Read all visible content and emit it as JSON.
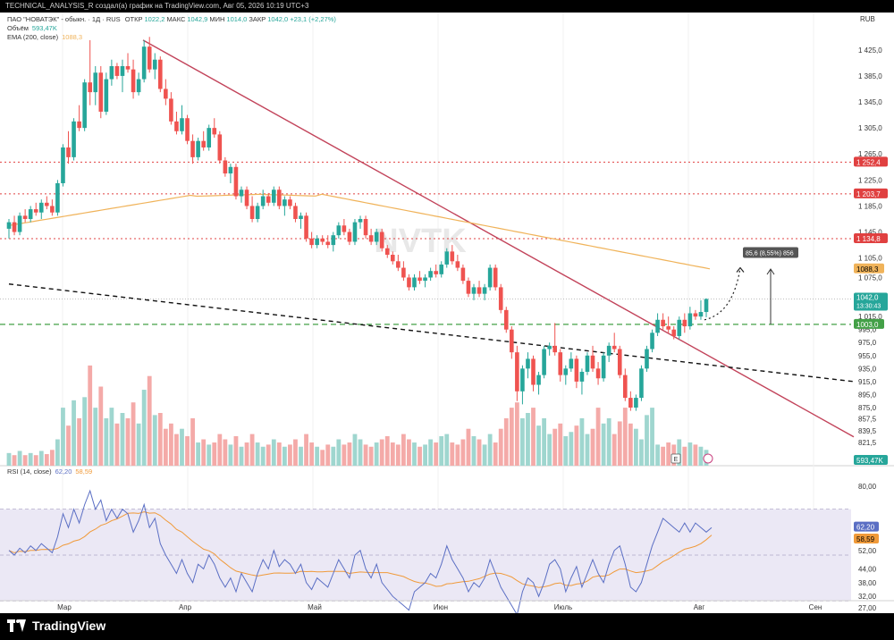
{
  "header": {
    "caption": "TECHNICAL_ANALYSIS_R создал(а) график на TradingView.com, Авг 05, 2026 10:19 UTC+3"
  },
  "footer": {
    "brand": "TradingView"
  },
  "legend": {
    "symbol": "ПАО \"НОВАТЭК\" - обыкн. · 1Д · RUS",
    "open_label": "ОТКР",
    "open": "1022,2",
    "high_label": "МАКС",
    "high": "1042,9",
    "low_label": "МИН",
    "low": "1014,0",
    "close_label": "ЗАКР",
    "close": "1042,0",
    "change": "+23,1 (+2,27%)",
    "volume_label": "Объём",
    "volume": "593,47K",
    "ema_label": "EMA (200, close)",
    "ema": "1088,3",
    "rsi_label": "RSI (14, close)",
    "rsi": "62,20",
    "rsi_ma": "58,59"
  },
  "watermark": "NVTK",
  "currency": "RUB",
  "colors": {
    "up": "#26a69a",
    "down": "#ef5350",
    "ema": "#f0b35a",
    "trend": "#c2435a",
    "rsi": "#5b6fc4",
    "rsi_ma": "#f09a3a",
    "support": "#43a047"
  },
  "price_axis": [
    "1 425,0",
    "1 385,0",
    "1 345,0",
    "1 305,0",
    "1 265,0",
    "1 225,0",
    "1 185,0",
    "1 145,0",
    "1 105,0",
    "1 075,0",
    "1 015,0",
    "995,0",
    "975,0",
    "955,0",
    "935,0",
    "915,0",
    "895,0",
    "875,0",
    "857,5",
    "839,5",
    "821,5"
  ],
  "price_tags": {
    "r1": "1 252,4",
    "r2": "1 203,7",
    "r3": "1 134,8",
    "ema": "1088,3",
    "last": "1042,0",
    "countdown": "13:30:43",
    "support": "1003,0",
    "volume": "593,47K"
  },
  "rsi_axis": [
    "80,00",
    "62,20",
    "58,59",
    "52,00",
    "44,00",
    "38,00",
    "32,00",
    "27,00"
  ],
  "time_axis": [
    "Мар",
    "Апр",
    "Май",
    "Июн",
    "Июль",
    "Авг",
    "Сен"
  ],
  "projection_label": "85,6 (8,55%) 856",
  "earnings_icon": "E",
  "chart_data": {
    "type": "candlestick",
    "price_range": [
      820,
      1455
    ],
    "ohlc": [
      [
        1150,
        1165,
        1135,
        1160
      ],
      [
        1160,
        1170,
        1140,
        1145
      ],
      [
        1145,
        1175,
        1140,
        1170
      ],
      [
        1170,
        1180,
        1160,
        1165
      ],
      [
        1165,
        1185,
        1160,
        1180
      ],
      [
        1180,
        1190,
        1170,
        1175
      ],
      [
        1175,
        1195,
        1165,
        1190
      ],
      [
        1190,
        1200,
        1180,
        1185
      ],
      [
        1185,
        1195,
        1170,
        1175
      ],
      [
        1175,
        1225,
        1170,
        1220
      ],
      [
        1220,
        1280,
        1215,
        1275
      ],
      [
        1275,
        1300,
        1250,
        1260
      ],
      [
        1260,
        1320,
        1255,
        1315
      ],
      [
        1315,
        1340,
        1300,
        1305
      ],
      [
        1305,
        1380,
        1300,
        1375
      ],
      [
        1375,
        1440,
        1340,
        1360
      ],
      [
        1360,
        1400,
        1340,
        1390
      ],
      [
        1390,
        1400,
        1320,
        1330
      ],
      [
        1330,
        1390,
        1325,
        1380
      ],
      [
        1380,
        1410,
        1370,
        1400
      ],
      [
        1400,
        1405,
        1380,
        1385
      ],
      [
        1385,
        1410,
        1360,
        1400
      ],
      [
        1400,
        1420,
        1390,
        1395
      ],
      [
        1395,
        1410,
        1350,
        1360
      ],
      [
        1360,
        1390,
        1355,
        1380
      ],
      [
        1380,
        1440,
        1375,
        1430
      ],
      [
        1430,
        1445,
        1390,
        1395
      ],
      [
        1395,
        1420,
        1380,
        1410
      ],
      [
        1410,
        1415,
        1360,
        1365
      ],
      [
        1365,
        1380,
        1340,
        1350
      ],
      [
        1350,
        1360,
        1310,
        1315
      ],
      [
        1315,
        1330,
        1295,
        1300
      ],
      [
        1300,
        1340,
        1295,
        1320
      ],
      [
        1320,
        1325,
        1280,
        1285
      ],
      [
        1285,
        1295,
        1250,
        1260
      ],
      [
        1260,
        1290,
        1255,
        1285
      ],
      [
        1285,
        1300,
        1270,
        1275
      ],
      [
        1275,
        1310,
        1270,
        1305
      ],
      [
        1305,
        1320,
        1290,
        1295
      ],
      [
        1295,
        1300,
        1250,
        1255
      ],
      [
        1255,
        1260,
        1230,
        1235
      ],
      [
        1235,
        1250,
        1220,
        1245
      ],
      [
        1245,
        1250,
        1195,
        1200
      ],
      [
        1200,
        1215,
        1190,
        1210
      ],
      [
        1210,
        1215,
        1180,
        1185
      ],
      [
        1185,
        1200,
        1160,
        1165
      ],
      [
        1165,
        1190,
        1160,
        1185
      ],
      [
        1185,
        1210,
        1180,
        1200
      ],
      [
        1200,
        1205,
        1185,
        1190
      ],
      [
        1190,
        1215,
        1185,
        1210
      ],
      [
        1210,
        1215,
        1180,
        1185
      ],
      [
        1185,
        1200,
        1170,
        1195
      ],
      [
        1195,
        1200,
        1180,
        1185
      ],
      [
        1185,
        1190,
        1160,
        1165
      ],
      [
        1165,
        1175,
        1150,
        1170
      ],
      [
        1170,
        1175,
        1130,
        1135
      ],
      [
        1135,
        1145,
        1120,
        1125
      ],
      [
        1125,
        1140,
        1120,
        1135
      ],
      [
        1135,
        1140,
        1125,
        1130
      ],
      [
        1130,
        1140,
        1120,
        1125
      ],
      [
        1125,
        1145,
        1115,
        1140
      ],
      [
        1140,
        1160,
        1135,
        1155
      ],
      [
        1155,
        1165,
        1140,
        1145
      ],
      [
        1145,
        1150,
        1125,
        1130
      ],
      [
        1130,
        1165,
        1125,
        1160
      ],
      [
        1160,
        1170,
        1150,
        1165
      ],
      [
        1165,
        1170,
        1135,
        1140
      ],
      [
        1140,
        1150,
        1125,
        1130
      ],
      [
        1130,
        1150,
        1125,
        1145
      ],
      [
        1145,
        1150,
        1115,
        1120
      ],
      [
        1120,
        1125,
        1105,
        1110
      ],
      [
        1110,
        1115,
        1095,
        1100
      ],
      [
        1100,
        1110,
        1085,
        1090
      ],
      [
        1090,
        1100,
        1070,
        1075
      ],
      [
        1075,
        1080,
        1055,
        1060
      ],
      [
        1060,
        1080,
        1055,
        1075
      ],
      [
        1075,
        1085,
        1065,
        1070
      ],
      [
        1070,
        1080,
        1060,
        1075
      ],
      [
        1075,
        1090,
        1070,
        1085
      ],
      [
        1085,
        1095,
        1075,
        1080
      ],
      [
        1080,
        1100,
        1075,
        1095
      ],
      [
        1095,
        1120,
        1090,
        1115
      ],
      [
        1115,
        1125,
        1095,
        1100
      ],
      [
        1100,
        1110,
        1085,
        1090
      ],
      [
        1090,
        1095,
        1065,
        1070
      ],
      [
        1070,
        1075,
        1045,
        1050
      ],
      [
        1050,
        1065,
        1040,
        1060
      ],
      [
        1060,
        1070,
        1045,
        1050
      ],
      [
        1050,
        1065,
        1040,
        1060
      ],
      [
        1060,
        1095,
        1055,
        1090
      ],
      [
        1090,
        1095,
        1055,
        1060
      ],
      [
        1060,
        1065,
        1020,
        1025
      ],
      [
        1025,
        1030,
        990,
        995
      ],
      [
        995,
        1000,
        950,
        960
      ],
      [
        960,
        970,
        885,
        900
      ],
      [
        900,
        940,
        880,
        935
      ],
      [
        935,
        960,
        920,
        950
      ],
      [
        950,
        955,
        900,
        910
      ],
      [
        910,
        930,
        895,
        925
      ],
      [
        925,
        970,
        920,
        965
      ],
      [
        965,
        975,
        955,
        970
      ],
      [
        970,
        1005,
        955,
        960
      ],
      [
        960,
        965,
        915,
        925
      ],
      [
        925,
        940,
        910,
        935
      ],
      [
        935,
        960,
        930,
        950
      ],
      [
        950,
        955,
        905,
        915
      ],
      [
        915,
        935,
        895,
        930
      ],
      [
        930,
        960,
        925,
        955
      ],
      [
        955,
        970,
        930,
        935
      ],
      [
        935,
        945,
        910,
        920
      ],
      [
        920,
        960,
        915,
        955
      ],
      [
        955,
        975,
        945,
        970
      ],
      [
        970,
        990,
        960,
        965
      ],
      [
        965,
        970,
        920,
        925
      ],
      [
        925,
        935,
        885,
        890
      ],
      [
        890,
        900,
        870,
        875
      ],
      [
        875,
        895,
        870,
        890
      ],
      [
        890,
        940,
        885,
        935
      ],
      [
        935,
        970,
        930,
        965
      ],
      [
        965,
        995,
        960,
        990
      ],
      [
        990,
        1020,
        985,
        1010
      ],
      [
        1010,
        1020,
        995,
        1000
      ],
      [
        1000,
        1015,
        990,
        995
      ],
      [
        995,
        1000,
        980,
        985
      ],
      [
        985,
        1015,
        980,
        1010
      ],
      [
        1010,
        1020,
        990,
        1000
      ],
      [
        1000,
        1030,
        995,
        1020
      ],
      [
        1020,
        1025,
        1010,
        1015
      ],
      [
        1015,
        1040,
        1010,
        1022
      ],
      [
        1022,
        1043,
        1014,
        1042
      ]
    ],
    "volume_pct": [
      0.12,
      0.1,
      0.14,
      0.1,
      0.12,
      0.1,
      0.14,
      0.11,
      0.15,
      0.25,
      0.55,
      0.38,
      0.62,
      0.45,
      0.65,
      0.95,
      0.55,
      0.75,
      0.45,
      0.55,
      0.4,
      0.5,
      0.45,
      0.6,
      0.4,
      0.72,
      0.85,
      0.48,
      0.5,
      0.35,
      0.4,
      0.3,
      0.35,
      0.28,
      0.45,
      0.22,
      0.25,
      0.2,
      0.22,
      0.3,
      0.25,
      0.2,
      0.28,
      0.18,
      0.22,
      0.3,
      0.22,
      0.18,
      0.2,
      0.25,
      0.22,
      0.18,
      0.2,
      0.25,
      0.18,
      0.3,
      0.22,
      0.18,
      0.15,
      0.2,
      0.18,
      0.25,
      0.2,
      0.22,
      0.3,
      0.25,
      0.2,
      0.18,
      0.22,
      0.25,
      0.28,
      0.22,
      0.2,
      0.3,
      0.25,
      0.22,
      0.18,
      0.2,
      0.25,
      0.22,
      0.28,
      0.3,
      0.22,
      0.2,
      0.25,
      0.35,
      0.28,
      0.25,
      0.2,
      0.3,
      0.22,
      0.35,
      0.45,
      0.55,
      0.6,
      0.45,
      0.5,
      0.55,
      0.38,
      0.45,
      0.3,
      0.35,
      0.4,
      0.28,
      0.32,
      0.38,
      0.45,
      0.3,
      0.35,
      0.55,
      0.4,
      0.45,
      0.3,
      0.42,
      0.55,
      0.4,
      0.35,
      0.25,
      0.48,
      0.55,
      0.2,
      0.18,
      0.22,
      0.2,
      0.25,
      0.18,
      0.22,
      0.2,
      0.18,
      0.15
    ],
    "rsi": [
      52,
      50,
      53,
      51,
      54,
      52,
      55,
      53,
      51,
      58,
      68,
      62,
      70,
      64,
      72,
      78,
      70,
      74,
      65,
      70,
      66,
      70,
      68,
      60,
      65,
      72,
      62,
      66,
      55,
      50,
      46,
      42,
      48,
      42,
      38,
      46,
      44,
      50,
      46,
      40,
      36,
      40,
      34,
      42,
      38,
      34,
      42,
      48,
      44,
      52,
      45,
      48,
      46,
      42,
      46,
      38,
      35,
      40,
      38,
      36,
      42,
      48,
      44,
      40,
      50,
      52,
      44,
      40,
      46,
      38,
      35,
      32,
      30,
      28,
      26,
      34,
      36,
      38,
      42,
      40,
      46,
      54,
      48,
      44,
      40,
      34,
      38,
      36,
      40,
      48,
      42,
      36,
      32,
      28,
      24,
      34,
      40,
      38,
      32,
      38,
      46,
      48,
      44,
      34,
      40,
      45,
      36,
      42,
      48,
      42,
      38,
      46,
      52,
      54,
      46,
      36,
      34,
      38,
      46,
      54,
      60,
      66,
      64,
      62,
      60,
      64,
      60,
      64,
      62,
      60,
      62
    ]
  }
}
